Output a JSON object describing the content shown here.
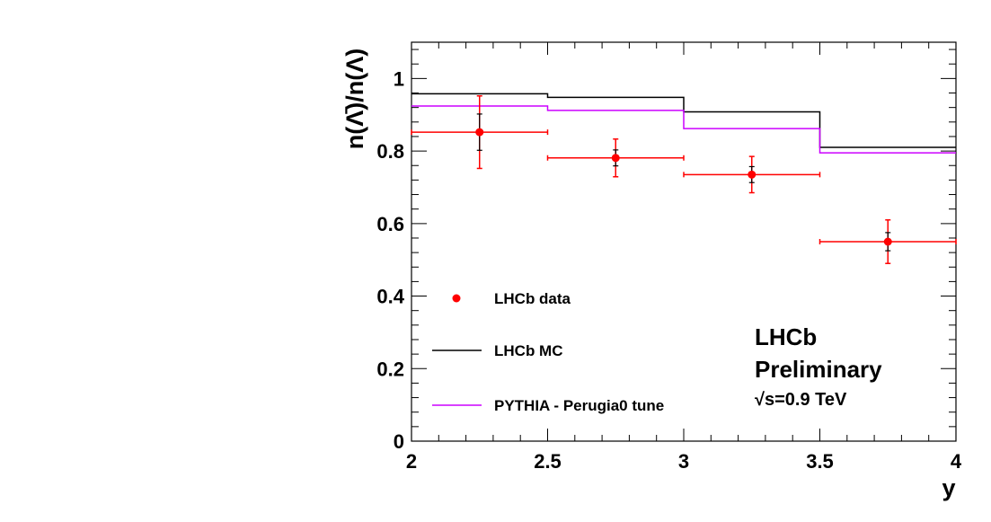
{
  "chart_data": {
    "type": "line",
    "xlabel": "y",
    "ylabel": "n(Λ̄)/n(Λ)",
    "xlim": [
      2,
      4
    ],
    "ylim": [
      0,
      1.1
    ],
    "x_ticks": [
      "2",
      "2.5",
      "3",
      "3.5",
      "4"
    ],
    "y_ticks": [
      "0",
      "0.2",
      "0.4",
      "0.6",
      "0.8",
      "1"
    ],
    "bins": [
      [
        2,
        2.5
      ],
      [
        2.5,
        3
      ],
      [
        3,
        3.5
      ],
      [
        3.5,
        4
      ]
    ],
    "series": [
      {
        "name": "LHCb data",
        "kind": "points",
        "color": "#ff0000",
        "x": [
          2.25,
          2.75,
          3.25,
          3.75
        ],
        "y": [
          0.852,
          0.781,
          0.735,
          0.55
        ],
        "stat_err": [
          0.05,
          0.022,
          0.022,
          0.025
        ],
        "total_err": [
          0.1,
          0.052,
          0.05,
          0.06
        ]
      },
      {
        "name": "LHCb MC",
        "kind": "step",
        "color": "#000000",
        "values": [
          0.958,
          0.948,
          0.908,
          0.81
        ]
      },
      {
        "name": "PYTHIA - Perugia0 tune",
        "kind": "step",
        "color": "#cc00ff",
        "values": [
          0.924,
          0.912,
          0.862,
          0.795
        ]
      }
    ],
    "annotation": {
      "line1": "LHCb",
      "line2": "Preliminary",
      "line3": "√s=0.9 TeV"
    },
    "legend_position": "bottom-left",
    "grid": false
  }
}
